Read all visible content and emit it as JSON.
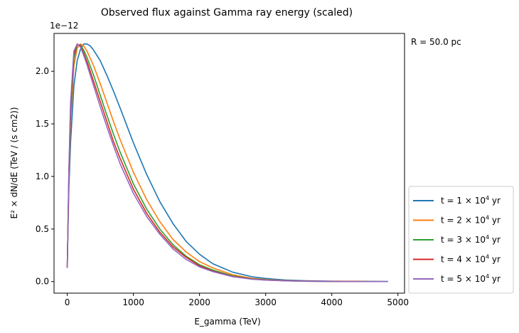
{
  "chart_data": {
    "type": "line",
    "title": "Observed flux against Gamma ray energy (scaled)",
    "xlabel": "E_gamma (TeV)",
    "ylabel": "E² × dN/dE (TeV / (s cm2))",
    "y_offset_label": "1e−12",
    "annotation": "R = 50.0 pc",
    "xlim": [
      -200,
      5100
    ],
    "ylim": [
      -0.11,
      2.36
    ],
    "x_ticks": [
      0,
      1000,
      2000,
      3000,
      4000,
      5000
    ],
    "x_tick_labels": [
      "0",
      "1000",
      "2000",
      "3000",
      "4000",
      "5000"
    ],
    "y_ticks": [
      0.0,
      0.5,
      1.0,
      1.5,
      2.0
    ],
    "y_tick_labels": [
      "0.0",
      "0.5",
      "1.0",
      "1.5",
      "2.0"
    ],
    "grid": false,
    "legend_position": "outside-right-bottom",
    "series": [
      {
        "name_prefix": "t = 1",
        "name_exp": "4",
        "name_suffix": "yr",
        "color": "#1f77b4",
        "x": [
          0,
          25,
          50,
          100,
          150,
          200,
          250,
          300,
          350,
          400,
          500,
          600,
          700,
          800,
          1000,
          1200,
          1400,
          1600,
          1800,
          2000,
          2200,
          2500,
          2800,
          3000,
          3300,
          3600,
          4000,
          4400,
          4850
        ],
        "y": [
          0.15,
          0.9,
          1.32,
          1.86,
          2.1,
          2.21,
          2.26,
          2.26,
          2.24,
          2.2,
          2.1,
          1.96,
          1.81,
          1.65,
          1.32,
          1.02,
          0.76,
          0.55,
          0.38,
          0.26,
          0.17,
          0.09,
          0.045,
          0.03,
          0.015,
          0.008,
          0.004,
          0.002,
          0.001
        ]
      },
      {
        "name_prefix": "t = 2",
        "name_exp": "4",
        "name_suffix": "yr",
        "color": "#ff7f0e",
        "x": [
          0,
          25,
          50,
          100,
          150,
          200,
          250,
          300,
          400,
          500,
          600,
          700,
          800,
          1000,
          1200,
          1400,
          1600,
          1800,
          2000,
          2200,
          2500,
          2800,
          3000,
          3300,
          3600,
          4000,
          4400,
          4850
        ],
        "y": [
          0.14,
          0.98,
          1.52,
          2.05,
          2.22,
          2.26,
          2.24,
          2.19,
          2.05,
          1.88,
          1.7,
          1.52,
          1.35,
          1.04,
          0.78,
          0.57,
          0.4,
          0.28,
          0.19,
          0.13,
          0.065,
          0.03,
          0.02,
          0.01,
          0.005,
          0.002,
          0.001,
          0.0
        ]
      },
      {
        "name_prefix": "t = 3",
        "name_exp": "4",
        "name_suffix": "yr",
        "color": "#2ca02c",
        "x": [
          0,
          25,
          50,
          100,
          150,
          200,
          250,
          300,
          400,
          500,
          600,
          700,
          800,
          1000,
          1200,
          1400,
          1600,
          1800,
          2000,
          2200,
          2500,
          2800,
          3000,
          3300,
          3600,
          4000,
          4400,
          4850
        ],
        "y": [
          0.13,
          1.02,
          1.6,
          2.12,
          2.25,
          2.25,
          2.2,
          2.13,
          1.96,
          1.77,
          1.58,
          1.4,
          1.23,
          0.93,
          0.69,
          0.5,
          0.35,
          0.24,
          0.16,
          0.11,
          0.055,
          0.026,
          0.017,
          0.009,
          0.004,
          0.002,
          0.001,
          0.0
        ]
      },
      {
        "name_prefix": "t = 4",
        "name_exp": "4",
        "name_suffix": "yr",
        "color": "#d62728",
        "x": [
          0,
          25,
          50,
          100,
          150,
          200,
          250,
          300,
          400,
          500,
          600,
          700,
          800,
          1000,
          1200,
          1400,
          1600,
          1800,
          2000,
          2200,
          2500,
          2800,
          3000,
          3300,
          3600,
          4000,
          4400,
          4850
        ],
        "y": [
          0.13,
          1.05,
          1.65,
          2.16,
          2.26,
          2.24,
          2.17,
          2.09,
          1.9,
          1.71,
          1.52,
          1.33,
          1.17,
          0.88,
          0.65,
          0.47,
          0.33,
          0.23,
          0.15,
          0.1,
          0.05,
          0.024,
          0.015,
          0.008,
          0.004,
          0.002,
          0.001,
          0.0
        ]
      },
      {
        "name_prefix": "t = 5",
        "name_exp": "4",
        "name_suffix": "yr",
        "color": "#9467bd",
        "x": [
          0,
          25,
          50,
          100,
          150,
          200,
          250,
          300,
          400,
          500,
          600,
          700,
          800,
          1000,
          1200,
          1400,
          1600,
          1800,
          2000,
          2200,
          2500,
          2800,
          3000,
          3300,
          3600,
          4000,
          4400,
          4850
        ],
        "y": [
          0.13,
          1.07,
          1.7,
          2.19,
          2.26,
          2.23,
          2.15,
          2.06,
          1.86,
          1.66,
          1.47,
          1.29,
          1.12,
          0.84,
          0.62,
          0.45,
          0.31,
          0.21,
          0.14,
          0.095,
          0.047,
          0.022,
          0.014,
          0.007,
          0.003,
          0.001,
          0.0,
          0.0
        ]
      }
    ]
  }
}
